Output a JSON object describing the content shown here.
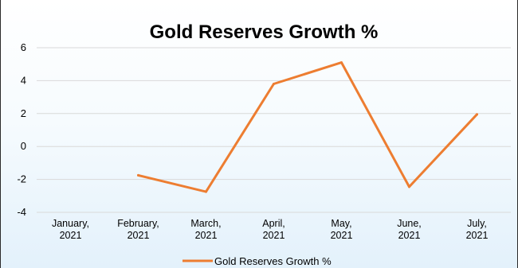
{
  "chart_data": {
    "type": "line",
    "title": "Gold Reserves Growth %",
    "xlabel": "",
    "ylabel": "",
    "categories": [
      [
        "January,",
        "2021"
      ],
      [
        "February,",
        "2021"
      ],
      [
        "March,",
        "2021"
      ],
      [
        "April,",
        "2021"
      ],
      [
        "May,",
        "2021"
      ],
      [
        "June,",
        "2021"
      ],
      [
        "July,",
        "2021"
      ]
    ],
    "series": [
      {
        "name": "Gold Reserves Growth %",
        "color": "#ed7d31",
        "values": [
          null,
          -1.75,
          -2.75,
          3.8,
          5.1,
          -2.45,
          1.95
        ]
      }
    ],
    "ylim": [
      -4,
      6
    ],
    "yticks": [
      "6",
      "4",
      "2",
      "0",
      "-2",
      "-4"
    ],
    "grid": true,
    "legend_position": "bottom"
  }
}
